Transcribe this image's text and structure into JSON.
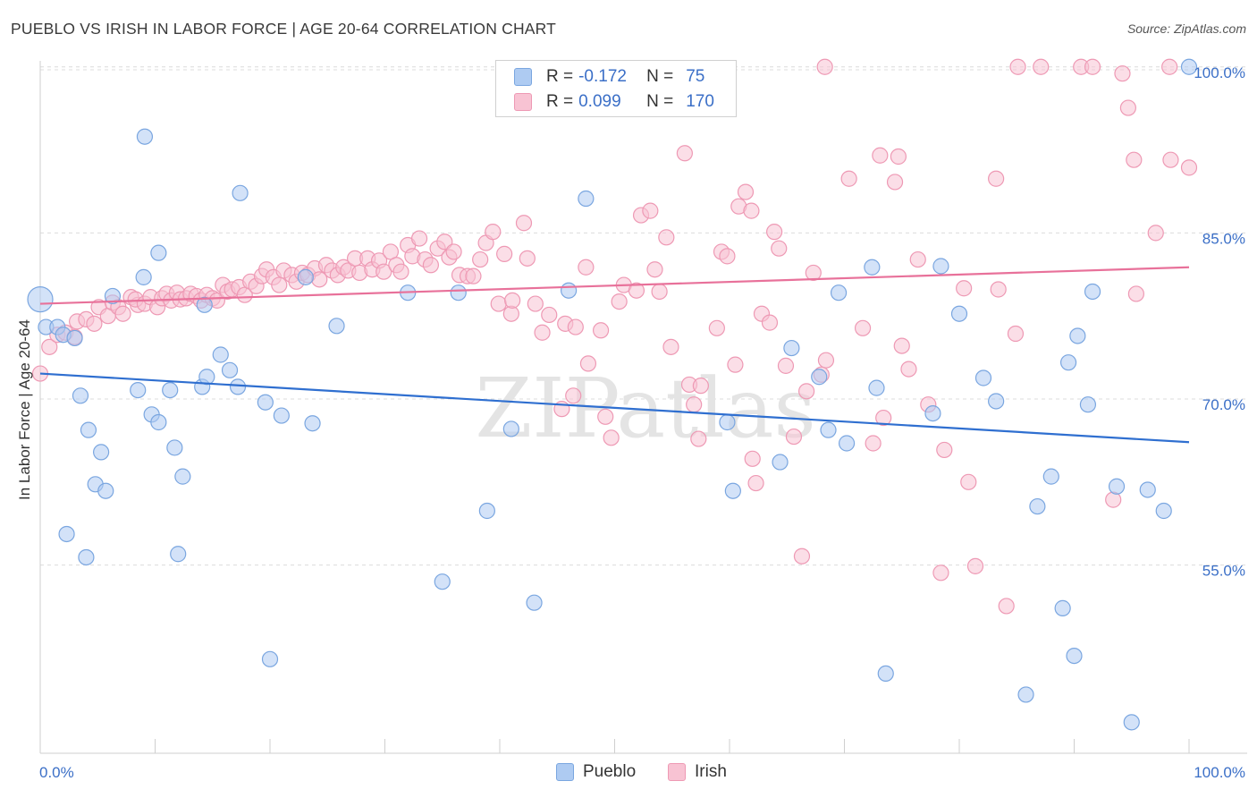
{
  "title": "PUEBLO VS IRISH IN LABOR FORCE | AGE 20-64 CORRELATION CHART",
  "source": "Source: ZipAtlas.com",
  "watermark": "ZIPatlas",
  "legend": {
    "pueblo": {
      "r_label": "R =",
      "r_value": "-0.172",
      "n_label": "N =",
      "n_value": "75"
    },
    "irish": {
      "r_label": "R =",
      "r_value": "0.099",
      "n_label": "N =",
      "n_value": "170"
    }
  },
  "bottom_legend": {
    "pueblo": "Pueblo",
    "irish": "Irish"
  },
  "colors": {
    "pueblo_fill": "#aecbf2",
    "pueblo_stroke": "#7aa6e0",
    "pueblo_line": "#2f6fd0",
    "irish_fill": "#f8c3d3",
    "irish_stroke": "#ee99b4",
    "irish_line": "#e8719a",
    "axis_text": "#3b6fc7"
  },
  "chart_data": {
    "type": "scatter",
    "title": "PUEBLO VS IRISH IN LABOR FORCE | AGE 20-64 CORRELATION CHART",
    "xlabel": "",
    "ylabel": "In Labor Force | Age 20-64",
    "xlim": [
      0,
      100
    ],
    "ylim": [
      38,
      102
    ],
    "x_tick_labels": [
      "0.0%",
      "100.0%"
    ],
    "y_ticks": [
      55,
      70,
      85,
      100
    ],
    "y_tick_labels": [
      "55.0%",
      "70.0%",
      "85.0%",
      "100.0%"
    ],
    "grid": true,
    "legend_position": "top-center",
    "series": [
      {
        "name": "Pueblo",
        "r": -0.172,
        "n": 75,
        "trend": {
          "x0": 0,
          "y0": 72.3,
          "x1": 100,
          "y1": 66.1
        },
        "points": [
          [
            0,
            79
          ],
          [
            0.5,
            76.5
          ],
          [
            1.5,
            76.5
          ],
          [
            2,
            75.8
          ],
          [
            3,
            75.5
          ],
          [
            3.5,
            70.3
          ],
          [
            4.2,
            67.2
          ],
          [
            5.3,
            65.2
          ],
          [
            4.8,
            62.3
          ],
          [
            5.7,
            61.7
          ],
          [
            2.3,
            57.8
          ],
          [
            4,
            55.7
          ],
          [
            6.3,
            79.3
          ],
          [
            9,
            81
          ],
          [
            8.5,
            70.8
          ],
          [
            9.1,
            93.7
          ],
          [
            9.7,
            68.6
          ],
          [
            10.3,
            67.9
          ],
          [
            10.3,
            83.2
          ],
          [
            11.3,
            70.8
          ],
          [
            11.7,
            65.6
          ],
          [
            12.4,
            63
          ],
          [
            12,
            56
          ],
          [
            14.3,
            78.5
          ],
          [
            14.1,
            71.1
          ],
          [
            14.5,
            72
          ],
          [
            15.7,
            74
          ],
          [
            16.5,
            72.6
          ],
          [
            17.2,
            71.1
          ],
          [
            17.4,
            88.6
          ],
          [
            19.6,
            69.7
          ],
          [
            20,
            46.5
          ],
          [
            21,
            68.5
          ],
          [
            23.1,
            81
          ],
          [
            23.7,
            67.8
          ],
          [
            25.8,
            76.6
          ],
          [
            32,
            79.6
          ],
          [
            35,
            53.5
          ],
          [
            36.4,
            79.6
          ],
          [
            38.9,
            59.9
          ],
          [
            41,
            67.3
          ],
          [
            43,
            51.6
          ],
          [
            46,
            79.8
          ],
          [
            47.5,
            88.1
          ],
          [
            59.8,
            67.9
          ],
          [
            60.3,
            61.7
          ],
          [
            64.4,
            64.3
          ],
          [
            65.4,
            74.6
          ],
          [
            67.8,
            72
          ],
          [
            68.6,
            67.2
          ],
          [
            69.5,
            79.6
          ],
          [
            70.2,
            66
          ],
          [
            72.8,
            71
          ],
          [
            73.6,
            45.2
          ],
          [
            72.4,
            81.9
          ],
          [
            77.7,
            68.7
          ],
          [
            78.4,
            82
          ],
          [
            80,
            77.7
          ],
          [
            82.1,
            71.9
          ],
          [
            83.2,
            69.8
          ],
          [
            85.8,
            43.3
          ],
          [
            86.8,
            60.3
          ],
          [
            88,
            63
          ],
          [
            89,
            51.1
          ],
          [
            90,
            46.8
          ],
          [
            89.5,
            73.3
          ],
          [
            90.3,
            75.7
          ],
          [
            91.2,
            69.5
          ],
          [
            91.6,
            79.7
          ],
          [
            93.7,
            62.1
          ],
          [
            95,
            40.8
          ],
          [
            96.4,
            61.8
          ],
          [
            97.8,
            59.9
          ],
          [
            100,
            100
          ]
        ]
      },
      {
        "name": "Irish",
        "r": 0.099,
        "n": 170,
        "trend": {
          "x0": 0,
          "y0": 78.6,
          "x1": 100,
          "y1": 81.9
        },
        "points": [
          [
            0,
            72.3
          ],
          [
            0.8,
            74.7
          ],
          [
            1.5,
            75.8
          ],
          [
            2.2,
            76
          ],
          [
            3,
            75.6
          ],
          [
            3.2,
            77
          ],
          [
            4,
            77.2
          ],
          [
            4.7,
            76.8
          ],
          [
            5.1,
            78.3
          ],
          [
            5.9,
            77.5
          ],
          [
            6.3,
            78.7
          ],
          [
            6.8,
            78.3
          ],
          [
            7.2,
            77.7
          ],
          [
            7.9,
            79.2
          ],
          [
            8.5,
            78.5
          ],
          [
            8.3,
            79
          ],
          [
            9.1,
            78.6
          ],
          [
            9.6,
            79.2
          ],
          [
            10.2,
            78.3
          ],
          [
            10.6,
            79.1
          ],
          [
            11,
            79.5
          ],
          [
            11.4,
            78.9
          ],
          [
            11.9,
            79.6
          ],
          [
            12.2,
            79
          ],
          [
            12.7,
            79.1
          ],
          [
            13.1,
            79.5
          ],
          [
            13.6,
            79.3
          ],
          [
            14,
            78.9
          ],
          [
            14.5,
            79.4
          ],
          [
            15,
            79.1
          ],
          [
            15.4,
            78.9
          ],
          [
            15.9,
            80.3
          ],
          [
            16.3,
            79.7
          ],
          [
            16.7,
            79.9
          ],
          [
            17.3,
            80.1
          ],
          [
            17.8,
            79.4
          ],
          [
            18.3,
            80.6
          ],
          [
            18.8,
            80.2
          ],
          [
            19.3,
            81.1
          ],
          [
            19.7,
            81.7
          ],
          [
            20.3,
            81
          ],
          [
            20.8,
            80.3
          ],
          [
            21.2,
            81.6
          ],
          [
            21.9,
            81.2
          ],
          [
            22.3,
            80.6
          ],
          [
            22.8,
            81.4
          ],
          [
            23.3,
            81.2
          ],
          [
            23.9,
            81.8
          ],
          [
            24.3,
            80.8
          ],
          [
            24.9,
            82.1
          ],
          [
            25.4,
            81.6
          ],
          [
            25.9,
            81.2
          ],
          [
            26.4,
            81.9
          ],
          [
            26.8,
            81.6
          ],
          [
            27.4,
            82.7
          ],
          [
            27.8,
            81.4
          ],
          [
            28.5,
            82.7
          ],
          [
            28.9,
            81.7
          ],
          [
            29.5,
            82.5
          ],
          [
            29.9,
            81.5
          ],
          [
            30.5,
            83.3
          ],
          [
            31,
            82.1
          ],
          [
            31.4,
            81.5
          ],
          [
            32,
            83.9
          ],
          [
            32.4,
            82.9
          ],
          [
            33,
            84.5
          ],
          [
            33.5,
            82.6
          ],
          [
            34,
            82.1
          ],
          [
            34.6,
            83.6
          ],
          [
            35.2,
            84.2
          ],
          [
            35.6,
            82.8
          ],
          [
            36,
            83.3
          ],
          [
            36.5,
            81.2
          ],
          [
            37.2,
            81.1
          ],
          [
            37.7,
            81.1
          ],
          [
            38.3,
            82.6
          ],
          [
            38.8,
            84.1
          ],
          [
            39.4,
            85.1
          ],
          [
            39.9,
            78.6
          ],
          [
            40.4,
            83.1
          ],
          [
            41,
            77.7
          ],
          [
            41.1,
            78.9
          ],
          [
            42.1,
            85.9
          ],
          [
            42.4,
            82.7
          ],
          [
            43.1,
            78.6
          ],
          [
            43.7,
            76
          ],
          [
            44.3,
            77.6
          ],
          [
            45.4,
            69.1
          ],
          [
            45.7,
            76.8
          ],
          [
            46.4,
            70.3
          ],
          [
            46.6,
            76.5
          ],
          [
            47.5,
            81.9
          ],
          [
            47.7,
            73.2
          ],
          [
            48.8,
            76.2
          ],
          [
            49.2,
            68.4
          ],
          [
            49.7,
            66.5
          ],
          [
            50.4,
            78.8
          ],
          [
            50.8,
            80.3
          ],
          [
            51.9,
            79.8
          ],
          [
            52.3,
            86.6
          ],
          [
            53.1,
            87
          ],
          [
            53.5,
            81.7
          ],
          [
            53.9,
            79.7
          ],
          [
            54.5,
            84.6
          ],
          [
            54.9,
            74.7
          ],
          [
            56.1,
            92.2
          ],
          [
            56.5,
            71.3
          ],
          [
            56.9,
            69.5
          ],
          [
            57.3,
            66.4
          ],
          [
            57.5,
            71.2
          ],
          [
            58.9,
            76.4
          ],
          [
            59.3,
            83.3
          ],
          [
            59.8,
            82.9
          ],
          [
            60.5,
            73.1
          ],
          [
            60.8,
            87.4
          ],
          [
            61.4,
            88.7
          ],
          [
            61.9,
            87
          ],
          [
            62,
            64.6
          ],
          [
            62.3,
            62.4
          ],
          [
            62.8,
            77.7
          ],
          [
            63.5,
            76.9
          ],
          [
            63.9,
            85.1
          ],
          [
            64.3,
            83.6
          ],
          [
            64.9,
            73
          ],
          [
            65.6,
            66.6
          ],
          [
            66.3,
            55.8
          ],
          [
            66.7,
            70.7
          ],
          [
            67.3,
            81.4
          ],
          [
            68,
            72.2
          ],
          [
            68.4,
            73.5
          ],
          [
            68.3,
            100
          ],
          [
            70.4,
            89.9
          ],
          [
            71.6,
            76.4
          ],
          [
            72.5,
            66
          ],
          [
            73.1,
            92
          ],
          [
            73.4,
            68.3
          ],
          [
            74.4,
            89.6
          ],
          [
            74.7,
            91.9
          ],
          [
            75,
            74.8
          ],
          [
            75.6,
            72.7
          ],
          [
            76.4,
            82.6
          ],
          [
            77.3,
            69.5
          ],
          [
            78.4,
            54.3
          ],
          [
            78.7,
            65.4
          ],
          [
            80.4,
            80
          ],
          [
            80.8,
            62.5
          ],
          [
            81.4,
            54.9
          ],
          [
            83.2,
            89.9
          ],
          [
            83.4,
            79.9
          ],
          [
            84.1,
            51.3
          ],
          [
            84.9,
            75.9
          ],
          [
            85.1,
            100
          ],
          [
            87.1,
            100
          ],
          [
            90.6,
            100
          ],
          [
            91.6,
            100
          ],
          [
            93.4,
            60.9
          ],
          [
            94.2,
            99.4
          ],
          [
            94.7,
            96.3
          ],
          [
            95.2,
            91.6
          ],
          [
            95.4,
            79.5
          ],
          [
            97.1,
            85
          ],
          [
            98.3,
            100
          ],
          [
            98.4,
            91.6
          ],
          [
            100,
            90.9
          ]
        ]
      }
    ]
  }
}
